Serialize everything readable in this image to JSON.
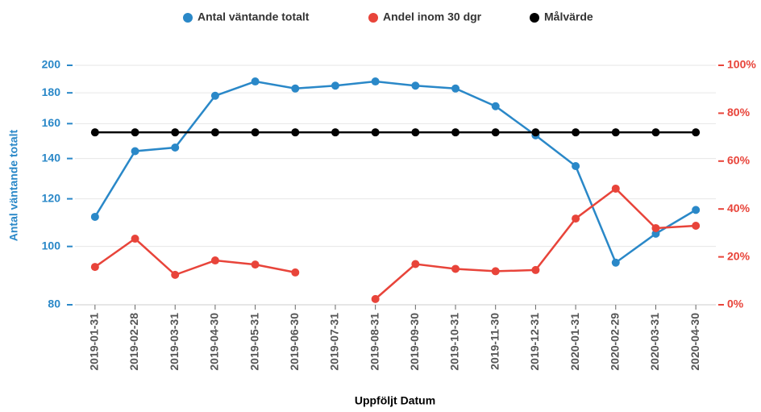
{
  "chart_data": {
    "type": "line",
    "x_label": "Uppföljt Datum",
    "y_label": "Antal väntande totalt",
    "categories": [
      "2019-01-31",
      "2019-02-28",
      "2019-03-31",
      "2019-04-30",
      "2019-05-31",
      "2019-06-30",
      "2019-07-31",
      "2019-08-31",
      "2019-09-30",
      "2019-10-31",
      "2019-11-30",
      "2019-12-31",
      "2020-01-31",
      "2020-02-29",
      "2020-03-31",
      "2020-04-30"
    ],
    "series": [
      {
        "name": "Antal väntande totalt",
        "color": "#2a88c8",
        "axis": "y",
        "values": [
          112,
          144,
          146,
          178,
          188,
          183,
          185,
          188,
          185,
          183,
          171,
          153,
          136,
          94,
          105,
          115
        ]
      },
      {
        "name": "Andel inom 30 dgr",
        "color": "#e8443a",
        "axis": "y2",
        "values": [
          15.8,
          27.6,
          12.5,
          18.5,
          16.8,
          13.5,
          null,
          2.4,
          17,
          15,
          14,
          14.5,
          36,
          48.5,
          32,
          33
        ]
      },
      {
        "name": "Målvärde",
        "color": "#000000",
        "axis": "y2",
        "values": [
          72,
          72,
          72,
          72,
          72,
          72,
          72,
          72,
          72,
          72,
          72,
          72,
          72,
          72,
          72,
          72
        ]
      }
    ],
    "ylim": [
      80,
      200
    ],
    "yscale": "log",
    "yticks": [
      80,
      100,
      120,
      140,
      160,
      180,
      200
    ],
    "y2lim": [
      0,
      100
    ],
    "y2ticks": [
      {
        "value": 0,
        "label": "0%"
      },
      {
        "value": 20,
        "label": "20%"
      },
      {
        "value": 40,
        "label": "40%"
      },
      {
        "value": 60,
        "label": "60%"
      },
      {
        "value": 80,
        "label": "80%"
      },
      {
        "value": 100,
        "label": "100%"
      }
    ],
    "grid": true,
    "legend": "top"
  }
}
